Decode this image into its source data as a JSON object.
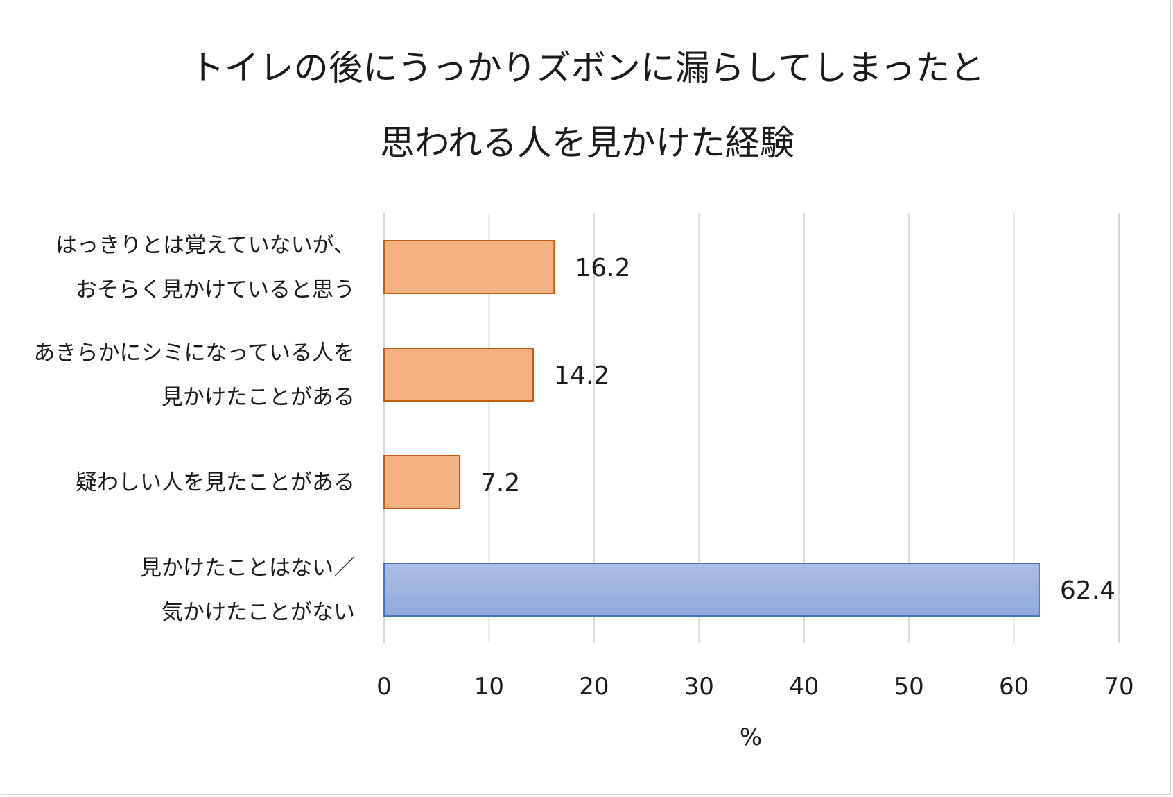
{
  "chart_data": {
    "type": "bar",
    "orientation": "horizontal",
    "title_lines": [
      "トイレの後にうっかりズボンに漏らしてしまったと",
      "思われる人を見かけた経験"
    ],
    "categories": [
      [
        "はっきりとは覚えていないが、",
        "おそらく見かけていると思う"
      ],
      [
        "あきらかにシミになっている人を",
        "見かけたことがある"
      ],
      [
        "疑わしい人を見たことがある"
      ],
      [
        "見かけたことはない／",
        "気かけたことがない"
      ]
    ],
    "values": [
      16.2,
      14.2,
      7.2,
      62.4
    ],
    "value_labels": [
      "16.2",
      "14.2",
      "7.2",
      "62.4"
    ],
    "bar_colors": [
      {
        "fill": "#f4b183",
        "stroke": "#c55a11"
      },
      {
        "fill": "#f4b183",
        "stroke": "#c55a11"
      },
      {
        "fill": "#f4b183",
        "stroke": "#c55a11"
      },
      {
        "fill": "#8faadc",
        "stroke": "#4472c4"
      }
    ],
    "xlim": [
      0,
      70
    ],
    "xticks": [
      0,
      10,
      20,
      30,
      40,
      50,
      60,
      70
    ],
    "xlabel": "%",
    "ylabel": "",
    "grid": true,
    "legend": "none"
  }
}
